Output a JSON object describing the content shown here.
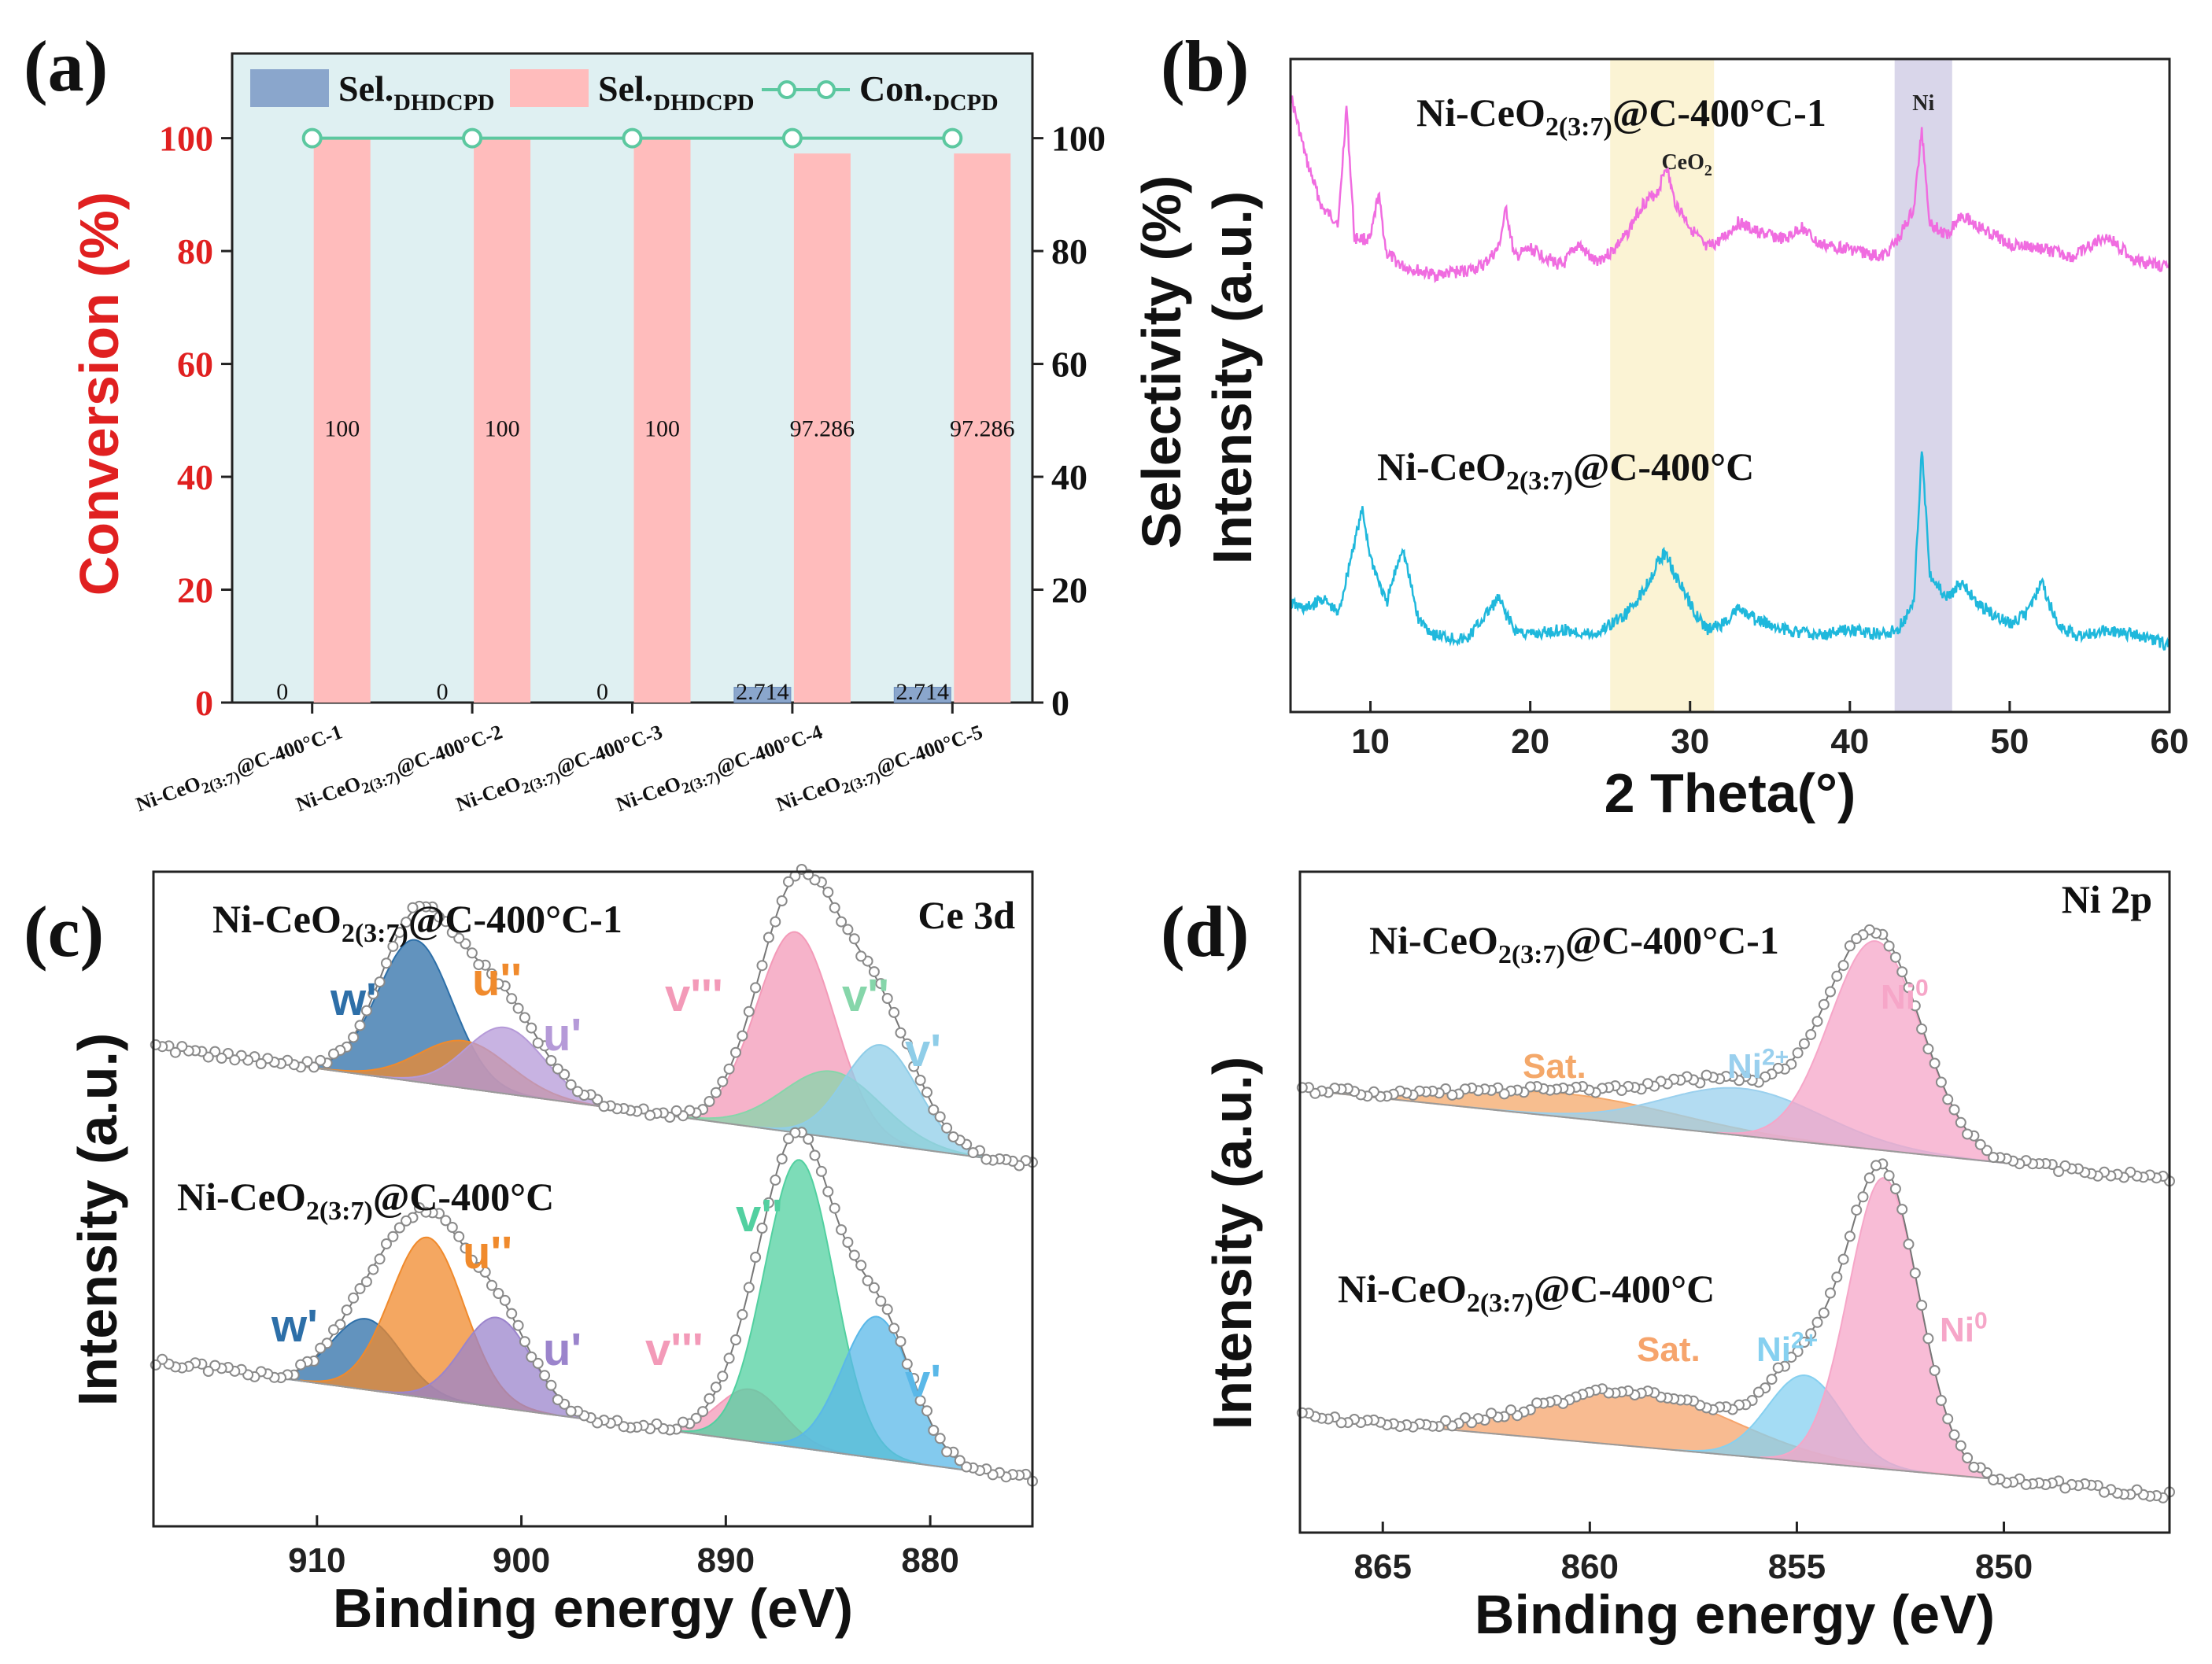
{
  "chart_data": [
    {
      "panel": "(a)",
      "type": "bar",
      "categories": [
        "Ni-CeO2(3:7)@C-400°C-1",
        "Ni-CeO2(3:7)@C-400°C-2",
        "Ni-CeO2(3:7)@C-400°C-3",
        "Ni-CeO2(3:7)@C-400°C-4",
        "Ni-CeO2(3:7)@C-400°C-5"
      ],
      "category_parts": [
        {
          "pre": "Ni-CeO",
          "sub": "2(3:7)",
          "post": "@C-400°C-1"
        },
        {
          "pre": "Ni-CeO",
          "sub": "2(3:7)",
          "post": "@C-400°C-2"
        },
        {
          "pre": "Ni-CeO",
          "sub": "2(3:7)",
          "post": "@C-400°C-3"
        },
        {
          "pre": "Ni-CeO",
          "sub": "2(3:7)",
          "post": "@C-400°C-4"
        },
        {
          "pre": "Ni-CeO",
          "sub": "2(3:7)",
          "post": "@C-400°C-5"
        }
      ],
      "series": [
        {
          "name": "Sel.DHDCPD",
          "kind": "bar",
          "color": "#8aa6cc",
          "values": [
            0,
            0,
            0,
            2.714,
            2.714
          ],
          "labels": [
            "0",
            "0",
            "0",
            "2.714",
            "2.714"
          ]
        },
        {
          "name": "Sel.DHDCPD",
          "kind": "bar",
          "color": "#ffbcbc",
          "values": [
            100,
            100,
            100,
            97.286,
            97.286
          ],
          "labels": [
            "100",
            "100",
            "100",
            "97.286",
            "97.286"
          ]
        },
        {
          "name": "Con.DCPD",
          "kind": "line",
          "color": "#5cc8a0",
          "values": [
            100,
            100,
            100,
            100,
            100
          ]
        }
      ],
      "legend": [
        {
          "base": "Sel.",
          "sub": "DHDCPD"
        },
        {
          "base": "Sel.",
          "sub": "DHDCPD"
        },
        {
          "base": "Con.",
          "sub": "DCPD"
        }
      ],
      "ylabel_left": "Conversion (%)",
      "ylabel_right": "Selectivity (%)",
      "ylim": [
        0,
        115
      ],
      "yticks": [
        "0",
        "20",
        "40",
        "60",
        "80",
        "100"
      ],
      "background": "#dff0f2"
    },
    {
      "panel": "(b)",
      "type": "line",
      "xlabel": "2 Theta(°)",
      "ylabel": "Intensity (a.u.)",
      "xlim": [
        5,
        60
      ],
      "xticks": [
        "10",
        "20",
        "30",
        "40",
        "50",
        "60"
      ],
      "highlight_regions": [
        {
          "label": "CeO",
          "label_sub": "2",
          "from": 25,
          "to": 31.5,
          "color": "#fbf3d4"
        },
        {
          "label": "Ni",
          "from": 42.8,
          "to": 46.4,
          "color": "#d9d6ea"
        }
      ],
      "series": [
        {
          "name": "Ni-CeO2(3:7)@C-400°C-1",
          "label_parts": {
            "pre": "Ni-CeO",
            "sub": "2(3:7)",
            "post": "@C-400°C-1"
          },
          "color": "#f06ce0",
          "x": [
            5,
            6,
            7,
            8,
            8.5,
            9,
            10,
            10.5,
            11,
            12,
            14,
            16,
            17,
            18,
            18.5,
            19,
            20,
            22,
            23,
            24,
            25,
            26,
            27,
            28,
            28.5,
            29,
            30,
            31,
            32,
            33,
            34,
            36,
            37,
            38,
            40,
            42,
            43,
            44,
            44.5,
            45,
            46,
            47,
            48,
            50,
            52,
            54,
            56,
            58,
            60
          ],
          "y": [
            100,
            70,
            48,
            42,
            95,
            35,
            34,
            55,
            28,
            22,
            18,
            20,
            22,
            30,
            48,
            26,
            30,
            22,
            32,
            24,
            28,
            36,
            50,
            56,
            68,
            52,
            40,
            30,
            34,
            42,
            38,
            34,
            40,
            32,
            30,
            26,
            34,
            48,
            84,
            42,
            36,
            46,
            40,
            32,
            30,
            26,
            36,
            24,
            22
          ]
        },
        {
          "name": "Ni-CeO2(3:7)@C-400°C",
          "label_parts": {
            "pre": "Ni-CeO",
            "sub": "2(3:7)",
            "post": "@C-400°C"
          },
          "color": "#1fb8dc",
          "x": [
            5,
            6,
            7,
            8,
            9,
            9.5,
            10,
            11,
            12,
            13,
            14,
            16,
            18,
            19,
            20,
            22,
            24,
            25,
            26,
            27,
            28,
            28.5,
            29,
            30,
            31,
            32,
            33,
            34,
            36,
            38,
            40,
            42,
            43,
            44,
            44.5,
            45,
            46,
            47,
            48,
            50,
            51,
            52,
            53,
            54,
            56,
            58,
            60
          ],
          "y": [
            22,
            20,
            24,
            18,
            46,
            58,
            40,
            22,
            44,
            16,
            10,
            8,
            24,
            12,
            10,
            12,
            10,
            14,
            18,
            26,
            38,
            42,
            34,
            22,
            12,
            14,
            20,
            16,
            12,
            10,
            12,
            10,
            12,
            22,
            82,
            34,
            24,
            30,
            22,
            14,
            18,
            30,
            14,
            10,
            12,
            10,
            6
          ]
        }
      ]
    },
    {
      "panel": "(c)",
      "type": "line",
      "title": "Ce 3d",
      "xlabel": "Binding energy (eV)",
      "ylabel": "Intensity (a.u.)",
      "xlim": [
        918,
        875
      ],
      "xticks": [
        "910",
        "900",
        "890",
        "880"
      ],
      "spectra": [
        {
          "name": "Ni-CeO2(3:7)@C-400°C-1",
          "label_parts": {
            "pre": "Ni-CeO",
            "sub": "2(3:7)",
            "post": "@C-400°C-1"
          },
          "peaks": [
            {
              "label": "w'",
              "center": 905.2,
              "height": 60,
              "width": 1.8,
              "color": "#2d6fa8"
            },
            {
              "label": "u''",
              "center": 902.8,
              "height": 20,
              "width": 2.2,
              "color": "#f08a2c"
            },
            {
              "label": "u'",
              "center": 900.8,
              "height": 28,
              "width": 1.9,
              "color": "#b59ad8"
            },
            {
              "label": "v'''",
              "center": 886.6,
              "height": 85,
              "width": 1.9,
              "color": "#f39ab8"
            },
            {
              "label": "v''",
              "center": 884.8,
              "height": 28,
              "width": 2.4,
              "color": "#86d6aa"
            },
            {
              "label": "v'",
              "center": 882.4,
              "height": 42,
              "width": 1.8,
              "color": "#8fcde8"
            }
          ]
        },
        {
          "name": "Ni-CeO2(3:7)@C-400°C",
          "label_parts": {
            "pre": "Ni-CeO",
            "sub": "2(3:7)",
            "post": "@C-400°C"
          },
          "peaks": [
            {
              "label": "w'",
              "center": 907.6,
              "height": 30,
              "width": 1.7,
              "color": "#2d6fa8"
            },
            {
              "label": "u''",
              "center": 904.6,
              "height": 68,
              "width": 1.8,
              "color": "#f08a2c"
            },
            {
              "label": "u'",
              "center": 901.2,
              "height": 38,
              "width": 1.7,
              "color": "#9b84cc"
            },
            {
              "label": "v'''",
              "center": 888.8,
              "height": 22,
              "width": 1.6,
              "color": "#f39ab8"
            },
            {
              "label": "v''",
              "center": 886.4,
              "height": 122,
              "width": 1.7,
              "color": "#52d0a0"
            },
            {
              "label": "v'",
              "center": 882.6,
              "height": 60,
              "width": 1.7,
              "color": "#5ab8e8"
            }
          ]
        }
      ]
    },
    {
      "panel": "(d)",
      "type": "line",
      "title": "Ni 2p",
      "xlabel": "Binding energy (eV)",
      "ylabel": "Intensity (a.u.)",
      "xlim": [
        867,
        846
      ],
      "xticks": [
        "865",
        "860",
        "855",
        "850"
      ],
      "spectra": [
        {
          "name": "Ni-CeO2(3:7)@C-400°C-1",
          "label_parts": {
            "pre": "Ni-CeO",
            "sub": "2(3:7)",
            "post": "@C-400°C-1"
          },
          "peaks": [
            {
              "label": "Sat.",
              "center": 860.5,
              "height": 12,
              "width": 2.6,
              "color": "#f4a86a"
            },
            {
              "label": "Ni2+",
              "label_base": "Ni",
              "label_sup": "2+",
              "center": 856.3,
              "height": 24,
              "width": 1.9,
              "color": "#9ad0ee"
            },
            {
              "label": "Ni0",
              "label_base": "Ni",
              "label_sup": "0",
              "center": 853.1,
              "height": 106,
              "width": 1.1,
              "color": "#f6a6c8"
            }
          ]
        },
        {
          "name": "Ni-CeO2(3:7)@C-400°C",
          "label_parts": {
            "pre": "Ni-CeO",
            "sub": "2(3:7)",
            "post": "@C-400°C"
          },
          "peaks": [
            {
              "label": "Sat.",
              "center": 858.8,
              "height": 28,
              "width": 2.3,
              "color": "#f6a46c"
            },
            {
              "label": "Ni2+",
              "label_base": "Ni",
              "label_sup": "2+",
              "center": 854.8,
              "height": 44,
              "width": 0.9,
              "color": "#86d0f0"
            },
            {
              "label": "Ni0",
              "label_base": "Ni",
              "label_sup": "0",
              "center": 852.9,
              "height": 148,
              "width": 0.85,
              "color": "#f6a6c8"
            }
          ]
        }
      ]
    }
  ]
}
